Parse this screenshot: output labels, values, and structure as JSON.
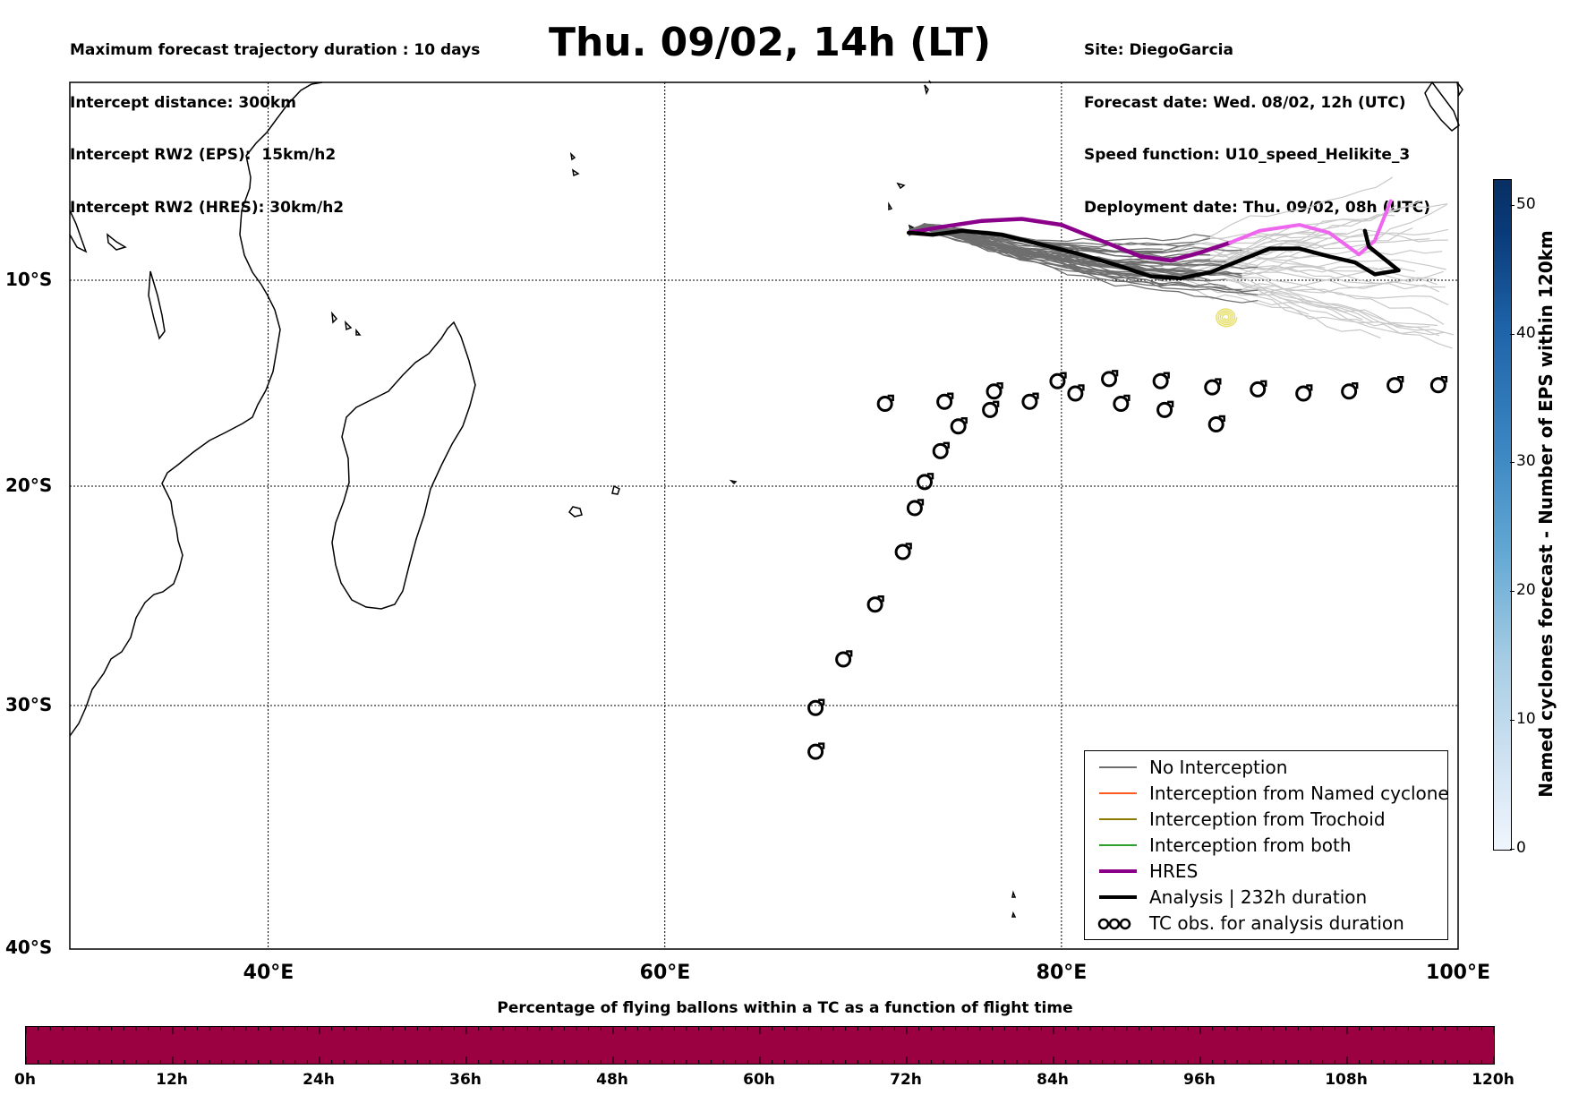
{
  "header": {
    "left_lines": [
      "Maximum forecast trajectory duration : 10 days",
      "Intercept distance: 300km",
      "Intercept RW2 (EPS):  15km/h2",
      "Intercept RW2 (HRES): 30km/h2"
    ],
    "right_lines": [
      "Site: DiegoGarcia",
      "Forecast date: Wed. 08/02, 12h (UTC)",
      "Speed function: U10_speed_Helikite_3",
      "Deployment date: Thu. 09/02, 08h (UTC)"
    ],
    "title": "Thu. 09/02, 14h (LT)"
  },
  "map": {
    "lat_labels": [
      "10°S",
      "20°S",
      "30°S",
      "40°S"
    ],
    "lon_labels": [
      "40°E",
      "60°E",
      "80°E",
      "100°E"
    ],
    "extent": {
      "lon_min": 30,
      "lon_max": 100,
      "lat_min": -40,
      "lat_max": 0
    },
    "colors": {
      "no_interception": "#6e6e6e",
      "named_cyclone": "#ff5a1f",
      "trochoid": "#8c7a00",
      "both": "#2ca02c",
      "hres": "#8b008b",
      "analysis": "#000000",
      "ensemble_late": "#c8c8c8",
      "hres_late": "#ee66ee",
      "trochoid_swirl": "#e8e070"
    },
    "tc_obs": [
      {
        "lon": 67.6,
        "lat": -31.9
      },
      {
        "lon": 67.6,
        "lat": -30.1
      },
      {
        "lon": 69.0,
        "lat": -27.9
      },
      {
        "lon": 70.6,
        "lat": -25.4
      },
      {
        "lon": 72.0,
        "lat": -23.0
      },
      {
        "lon": 72.6,
        "lat": -21.0
      },
      {
        "lon": 73.1,
        "lat": -19.8
      },
      {
        "lon": 73.9,
        "lat": -18.3
      },
      {
        "lon": 74.8,
        "lat": -17.1
      },
      {
        "lon": 76.4,
        "lat": -16.3
      },
      {
        "lon": 76.6,
        "lat": -15.4
      },
      {
        "lon": 78.4,
        "lat": -15.9
      },
      {
        "lon": 79.8,
        "lat": -14.9
      },
      {
        "lon": 80.7,
        "lat": -15.5
      },
      {
        "lon": 82.4,
        "lat": -14.8
      },
      {
        "lon": 83.0,
        "lat": -16.0
      },
      {
        "lon": 85.2,
        "lat": -16.3
      },
      {
        "lon": 87.6,
        "lat": -15.2
      },
      {
        "lon": 87.8,
        "lat": -17.0
      },
      {
        "lon": 89.9,
        "lat": -15.3
      },
      {
        "lon": 92.2,
        "lat": -15.5
      },
      {
        "lon": 94.5,
        "lat": -15.4
      },
      {
        "lon": 96.8,
        "lat": -15.1
      },
      {
        "lon": 99.0,
        "lat": -15.1
      },
      {
        "lon": 85.0,
        "lat": -14.9
      },
      {
        "lon": 71.1,
        "lat": -16.0
      },
      {
        "lon": 74.1,
        "lat": -15.9
      }
    ],
    "hres_track": [
      [
        72.3,
        -7.6
      ],
      [
        74,
        -7.3
      ],
      [
        76,
        -7.0
      ],
      [
        78,
        -6.9
      ],
      [
        80,
        -7.2
      ],
      [
        82,
        -8.0
      ],
      [
        84,
        -8.8
      ],
      [
        85.5,
        -9.0
      ],
      [
        87,
        -8.6
      ],
      [
        88.5,
        -8.1
      ]
    ],
    "hres_track_late": [
      [
        88.5,
        -8.1
      ],
      [
        90,
        -7.5
      ],
      [
        92,
        -7.2
      ],
      [
        93.5,
        -7.6
      ],
      [
        95,
        -8.7
      ],
      [
        95.8,
        -8.0
      ],
      [
        96.6,
        -6.0
      ]
    ],
    "analysis_track": [
      [
        72.3,
        -7.6
      ],
      [
        73.5,
        -7.7
      ],
      [
        75,
        -7.5
      ],
      [
        77,
        -7.7
      ],
      [
        79,
        -8.2
      ],
      [
        81,
        -8.7
      ],
      [
        83,
        -9.3
      ],
      [
        84.5,
        -9.8
      ],
      [
        86,
        -9.9
      ],
      [
        87.5,
        -9.6
      ],
      [
        89,
        -9.0
      ],
      [
        90.5,
        -8.4
      ],
      [
        92,
        -8.4
      ],
      [
        93.5,
        -8.8
      ],
      [
        94.8,
        -9.1
      ],
      [
        95.8,
        -9.7
      ],
      [
        97,
        -9.5
      ],
      [
        95.5,
        -8.3
      ],
      [
        95.3,
        -7.5
      ]
    ],
    "legend": {
      "items": [
        {
          "label": "No Interception",
          "kind": "thin",
          "color": "#6e6e6e"
        },
        {
          "label": "Interception from Named cyclone",
          "kind": "thin",
          "color": "#ff5a1f"
        },
        {
          "label": "Interception from Trochoid",
          "kind": "thin",
          "color": "#8c7a00"
        },
        {
          "label": "Interception from both",
          "kind": "thin",
          "color": "#2ca02c"
        },
        {
          "label": "HRES",
          "kind": "thick",
          "color": "#8b008b"
        },
        {
          "label": "Analysis | 232h duration",
          "kind": "thick",
          "color": "#000000"
        },
        {
          "label": "TC obs. for analysis duration",
          "kind": "tc",
          "color": "#000000"
        }
      ]
    }
  },
  "colorbar_vertical": {
    "label": "Named cyclones forecast - Number of EPS within 120km",
    "ticks": [
      "0",
      "10",
      "20",
      "30",
      "40",
      "50"
    ],
    "max": 52
  },
  "colorbar_horizontal": {
    "title": "Percentage of flying ballons within a TC as a function of flight time",
    "ticks": [
      "0h",
      "12h",
      "24h",
      "36h",
      "48h",
      "60h",
      "72h",
      "84h",
      "96h",
      "108h",
      "120h"
    ],
    "color": "#9b0040"
  }
}
